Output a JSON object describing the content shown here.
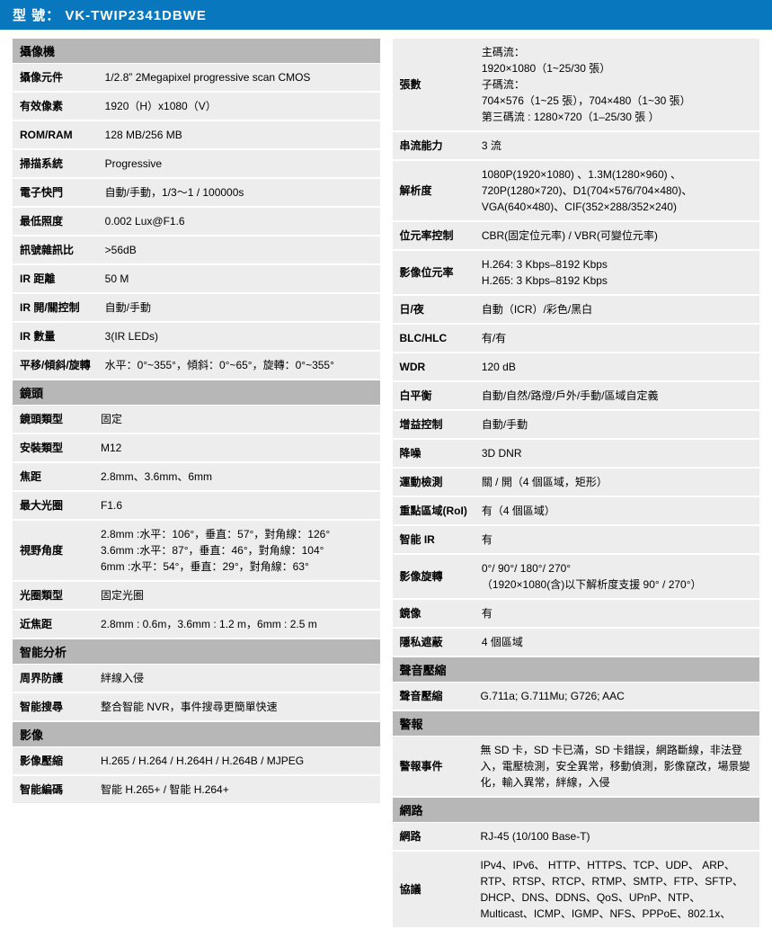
{
  "header": {
    "label": "型 號：",
    "model": "VK-TWIP2341DBWE"
  },
  "left": {
    "camera": {
      "title": "攝像機",
      "rows": [
        {
          "k": "攝像元件",
          "v": "1/2.8”  2Megapixel progressive scan CMOS"
        },
        {
          "k": "有效像素",
          "v": "1920（H）x1080（V）"
        },
        {
          "k": "ROM/RAM",
          "v": "128 MB/256 MB"
        },
        {
          "k": "掃描系統",
          "v": "Progressive"
        },
        {
          "k": "電子快門",
          "v": "自動/手動，1/3～1 / 100000s"
        },
        {
          "k": "最低照度",
          "v": "0.002 Lux@F1.6"
        },
        {
          "k": "訊號雜訊比",
          "v": ">56dB"
        },
        {
          "k": "IR 距離",
          "v": "50 M"
        },
        {
          "k": "IR 開/關控制",
          "v": "自動/手動"
        },
        {
          "k": "IR 數量",
          "v": "3(IR LEDs)"
        },
        {
          "k": "平移/傾斜/旋轉",
          "v": "水平：0°~355°，傾斜：0°~65°，旋轉：0°~355°"
        }
      ]
    },
    "lens": {
      "title": "鏡頭",
      "rows": [
        {
          "k": "鏡頭類型",
          "v": "固定"
        },
        {
          "k": "安裝類型",
          "v": "M12"
        },
        {
          "k": "焦距",
          "v": "2.8mm、3.6mm、6mm"
        },
        {
          "k": "最大光圈",
          "v": "F1.6"
        },
        {
          "k": "視野角度",
          "v": "2.8mm :水平：106°，垂直：57°，對角線：126°\n3.6mm :水平：87°，垂直：46°，對角線：104°\n6mm :水平：54°，垂直：29°，對角線：63°"
        },
        {
          "k": "光圈類型",
          "v": "固定光圈"
        },
        {
          "k": "近焦距",
          "v": "2.8mm : 0.6m，3.6mm : 1.2 m，6mm : 2.5 m"
        }
      ]
    },
    "ai": {
      "title": "智能分析",
      "rows": [
        {
          "k": "周界防護",
          "v": "絆線入侵"
        },
        {
          "k": "智能搜尋",
          "v": "整合智能 NVR，事件搜尋更簡單快速"
        }
      ]
    },
    "video": {
      "title": "影像",
      "rows": [
        {
          "k": "影像壓縮",
          "v": "H.265 / H.264 / H.264H / H.264B / MJPEG"
        },
        {
          "k": "智能編碼",
          "v": "智能 H.265+ /  智能 H.264+"
        }
      ]
    }
  },
  "right": {
    "videoCont": {
      "rows": [
        {
          "k": "張數",
          "v": "主碼流：\n1920×1080（1~25/30 張）\n子碼流：\n704×576（1~25 張），704×480（1~30 張）\n第三碼流 : 1280×720（1–25/30 張 ）"
        },
        {
          "k": "串流能力",
          "v": "3 流"
        },
        {
          "k": "解析度",
          "v": "1080P(1920×1080)  、1.3M(1280×960)  、720P(1280×720)、D1(704×576/704×480)、VGA(640×480)、CIF(352×288/352×240)"
        },
        {
          "k": "位元率控制",
          "v": "CBR(固定位元率) / VBR(可變位元率)"
        },
        {
          "k": "影像位元率",
          "v": "H.264: 3 Kbps–8192 Kbps\nH.265: 3 Kbps–8192 Kbps"
        },
        {
          "k": "日/夜",
          "v": "自動（ICR）/彩色/黑白"
        },
        {
          "k": "BLC/HLC",
          "v": "有/有"
        },
        {
          "k": "WDR",
          "v": "120 dB"
        },
        {
          "k": "白平衡",
          "v": "自動/自然/路燈/戶外/手動/區域自定義"
        },
        {
          "k": "增益控制",
          "v": "自動/手動"
        },
        {
          "k": "降噪",
          "v": "3D DNR"
        },
        {
          "k": "運動檢測",
          "v": "關  /  開（4 個區域，矩形）"
        },
        {
          "k": "重點區域(RoI)",
          "v": "有（4 個區域）"
        },
        {
          "k": "智能 IR",
          "v": "有"
        },
        {
          "k": "影像旋轉",
          "v": "0°/ 90°/ 180°/ 270°\n （1920×1080(含)以下解析度支援 90° / 270°）"
        },
        {
          "k": "鏡像",
          "v": "有"
        },
        {
          "k": "隱私遮蔽",
          "v": "4 個區域"
        }
      ]
    },
    "audio": {
      "title": "聲音壓縮",
      "rows": [
        {
          "k": "聲音壓縮",
          "v": "G.711a; G.711Mu; G726; AAC"
        }
      ]
    },
    "alarm": {
      "title": "警報",
      "rows": [
        {
          "k": "警報事件",
          "v": "無 SD 卡，SD 卡已滿，SD 卡錯誤，網路斷線，非法登入，電壓檢測，安全異常，移動偵測，影像竄改，場景變化，輸入異常，絆線，入侵"
        }
      ]
    },
    "network": {
      "title": "網路",
      "rows": [
        {
          "k": "網路",
          "v": "RJ-45 (10/100 Base-T)"
        },
        {
          "k": "協議",
          "v": "IPv4、IPv6、 HTTP、HTTPS、TCP、UDP、 ARP、RTP、RTSP、RTCP、RTMP、SMTP、FTP、SFTP、DHCP、DNS、DDNS、QoS、UPnP、NTP、Multicast、ICMP、IGMP、NFS、PPPoE、802.1x、",
          "small": true
        }
      ]
    }
  }
}
